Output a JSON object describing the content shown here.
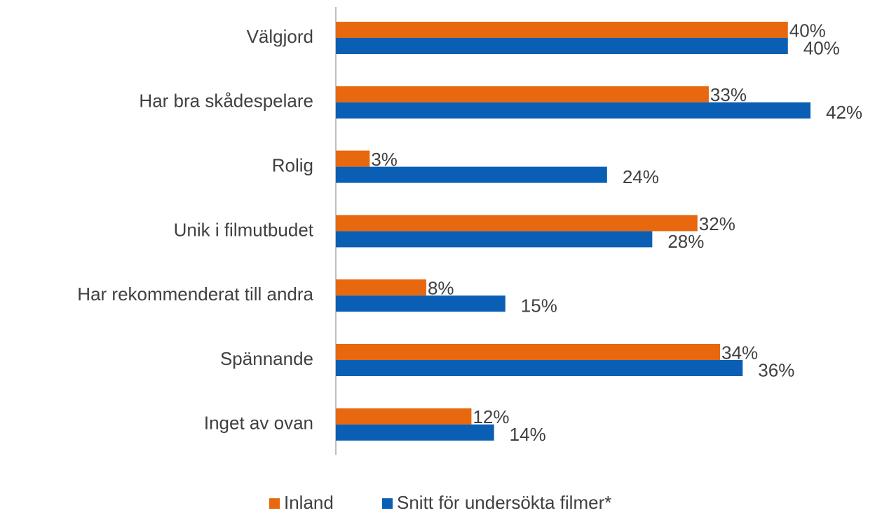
{
  "chart_data": {
    "type": "bar",
    "orientation": "horizontal",
    "categories": [
      "Välgjord",
      "Har bra skådespelare",
      "Rolig",
      "Unik i filmutbudet",
      "Har rekommenderat till andra",
      "Spännande",
      "Inget av ovan"
    ],
    "series": [
      {
        "name": "Inland",
        "color": "#e8680f",
        "values": [
          40,
          33,
          3,
          32,
          8,
          34,
          12
        ],
        "value_labels": [
          "40%",
          "33%",
          "3%",
          "32%",
          "8%",
          "34%",
          "12%"
        ]
      },
      {
        "name": "Snitt för undersökta filmer*",
        "color": "#0a5fb4",
        "values": [
          40,
          42,
          24,
          28,
          15,
          36,
          14
        ],
        "value_labels": [
          "40%",
          "42%",
          "24%",
          "28%",
          "15%",
          "36%",
          "14%"
        ]
      }
    ],
    "legend": "bottom"
  }
}
